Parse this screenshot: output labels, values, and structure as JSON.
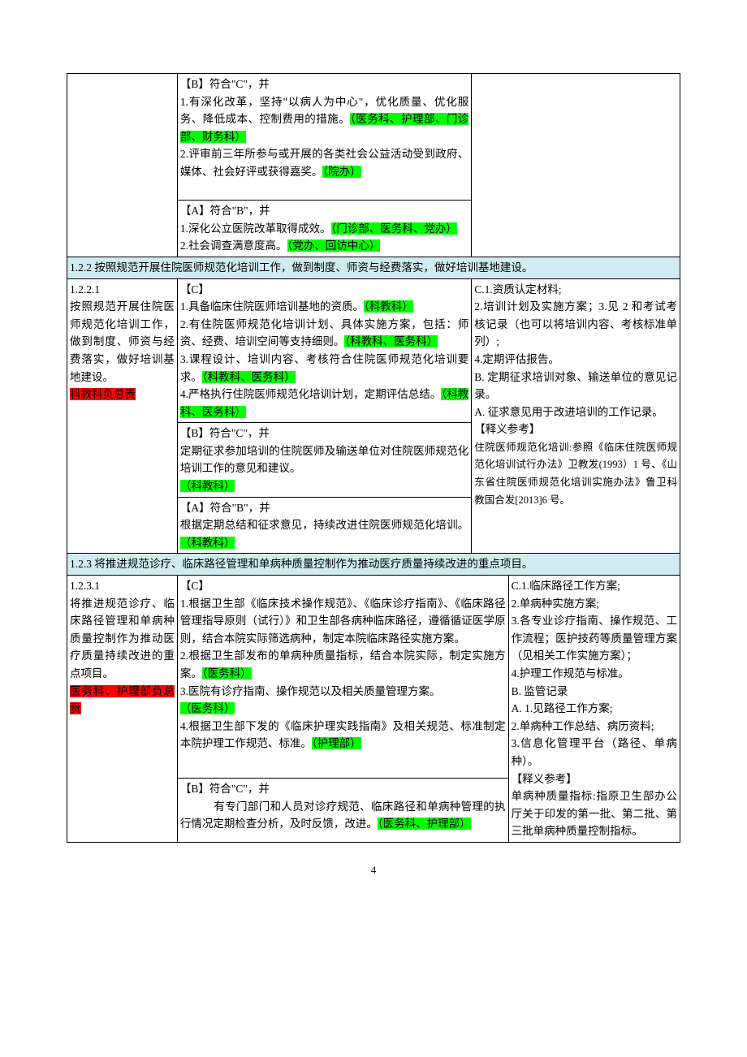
{
  "colors": {
    "highlight_green": "#00ff00",
    "highlight_red": "#ff0000",
    "header_bg": "#d0ecf0",
    "border": "#000000"
  },
  "page_number": "4",
  "r1": {
    "left": "",
    "mid_1": "【B】符合\"C\"，并",
    "mid_2a": "1.有深化改革，坚持\"以病人为中心\"，优化质量、优化服务、降低成本、控制费用的措施。",
    "mid_2b": "（医务科、护理部、门诊部、财务科）",
    "mid_3a": "2.评审前三年所参与或开展的各类社会公益活动受到政府、媒体、社会好评或获得嘉奖。",
    "mid_3b": "（院办）",
    "right": ""
  },
  "r2": {
    "mid_1": "【A】符合\"B\"，并",
    "mid_2a": "1.深化公立医院改革取得成效。",
    "mid_2b": "（门诊部、医务科、党办）",
    "mid_3a": "2.社会调查满意度高。",
    "mid_3b": "（党办、回访中心）"
  },
  "h122": "1.2.2 按照规范开展住院医师规范化培训工作，做到制度、师资与经费落实，做好培训基地建设。",
  "r3": {
    "left_1": "1.2.2.1",
    "left_2": "按照规范开展住院医师规范化培训工作，做到制度、师资与经费落实，做好培训基地建设。",
    "left_3": "科教科负总责",
    "mid_h": "【C】",
    "mid_1a": "1.具备临床住院医师培训基地的资质。",
    "mid_1b": "（科教科）",
    "mid_2a": "2.有住院医师规范化培训计划、具体实施方案，包括：师资、经费、培训空间等支持细则。",
    "mid_2b": "（科教科、医务科）",
    "mid_3a": "3.课程设计、培训内容、考核符合住院医师规范化培训要求。",
    "mid_3b": "（科教科、医务科）",
    "mid_4a": "4.严格执行住院医师规范化培训计划，定期评估总结。",
    "mid_4b": "（科教科、医务科）",
    "right_1": "C.1.资质认定材料;",
    "right_2": "2.培训计划及实施方案；3.见 2 和考试考核记录（也可以将培训内容、考核标准单列）;",
    "right_3": "4.定期评估报告。",
    "right_4": "B. 定期征求培训对象、输送单位的意见记录。",
    "right_5": "A. 征求意见用于改进培训的工作记录。",
    "right_6": "【释义参考】",
    "right_7": "住院医师规范化培训:参照《临床住院医师规范化培训试行办法》卫教发(1993）1 号、《山东省住院医师规范化培训实施办法》鲁卫科教国合发[2013]6 号。"
  },
  "r4": {
    "mid_h": "【B】符合\"C\"，并",
    "mid_1a": "定期征求参加培训的住院医师及输送单位对住院医师规范化培训工作的意见和建议。",
    "mid_1b": "（科教科）"
  },
  "r5": {
    "mid_h": "【A】符合\"B\"，并",
    "mid_1a": "根据定期总结和征求意见，持续改进住院医师规范化培训。",
    "mid_1b": "（科教科）"
  },
  "h123": "1.2.3 将推进规范诊疗、临床路径管理和单病种质量控制作为推动医疗质量持续改进的重点项目。",
  "r6": {
    "left_1": "1.2.3.1",
    "left_2": "将推进规范诊疗、临床路径管理和单病种质量控制作为推动医疗质量持续改进的重点项目。",
    "left_3": "医务科、护理部负总责",
    "mid_h": "【C】",
    "mid_1a": "1.根据卫生部《临床技术操作规范》、《临床诊疗指南》、《临床路径管理指导原则（试行）》和卫生部各病种临床路径，遵循循证医学原则，结合本院实际筛选病种，制定本院临床路径实施方案。",
    "mid_2a": "2.根据卫生部发布的单病种质量指标，结合本院实际，制定实施方案。",
    "mid_2b": "（医务科）",
    "mid_3a": "3.医院有诊疗指南、操作规范以及相关质量管理方案。",
    "mid_3b": "（医务科）",
    "mid_4a": "4.根据卫生部下发的《临床护理实践指南》及相关规范、标准制定本院护理工作规范、标准。",
    "mid_4b": "（护理部）",
    "right_1": "C.1.临床路径工作方案;",
    "right_2": "2.单病种实施方案;",
    "right_3": "3.各专业诊疗指南、操作规范、工作流程；医护技药等质量管理方案（见相关工作实施方案）；",
    "right_4": "4.护理工作规范与标准。",
    "right_5": "B. 监管记录",
    "right_6": "A. 1.见路径工作方案;",
    "right_7": "2.单病种工作总结、病历资料;",
    "right_8": "3.信息化管理平台（路径、单病种）。",
    "right_9": "【释义参考】",
    "right_10": "单病种质量指标:指原卫生部办公厅关于印发的第一批、第二批、第三批单病种质量控制指标。"
  },
  "r7": {
    "mid_h": "【B】符合\"C\"，并",
    "mid_1a": "　　　有专门部门和人员对诊疗规范、临床路径和单病种管理的执行情况定期检查分析，及时反馈，改进。",
    "mid_1b": "（医务科、护理部）"
  }
}
